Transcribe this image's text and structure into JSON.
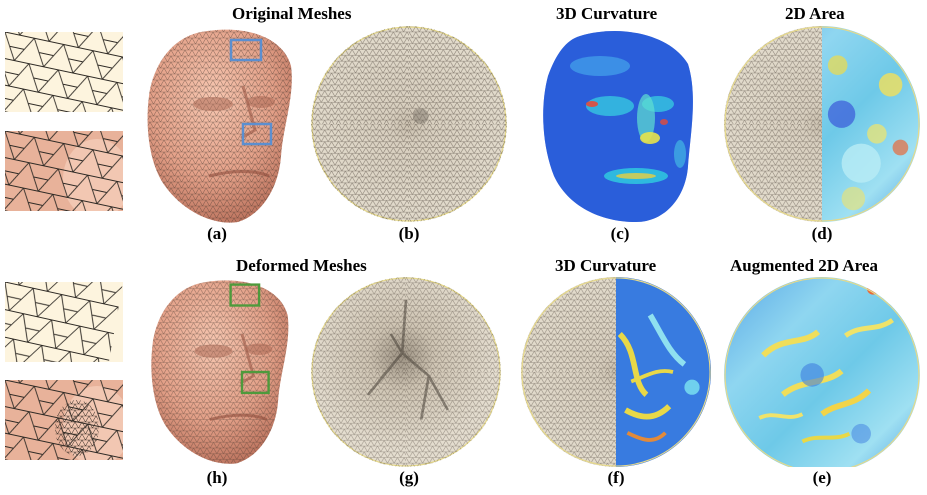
{
  "row1": {
    "headers": {
      "meshes": "Original Meshes",
      "curvature": "3D Curvature",
      "area": "2D Area"
    },
    "labels": [
      "(a)",
      "(b)",
      "(c)",
      "(d)"
    ]
  },
  "row2": {
    "headers": {
      "meshes": "Deformed Meshes",
      "curvature": "3D Curvature",
      "area": "Augmented 2D Area"
    },
    "labels": [
      "(h)",
      "(g)",
      "(f)",
      "(e)"
    ]
  },
  "colors": {
    "skin": "#e9a98f",
    "paper": "#fdf6e3",
    "highlight_original": "#5b8fd0",
    "highlight_deformed": "#4e9a3c"
  }
}
